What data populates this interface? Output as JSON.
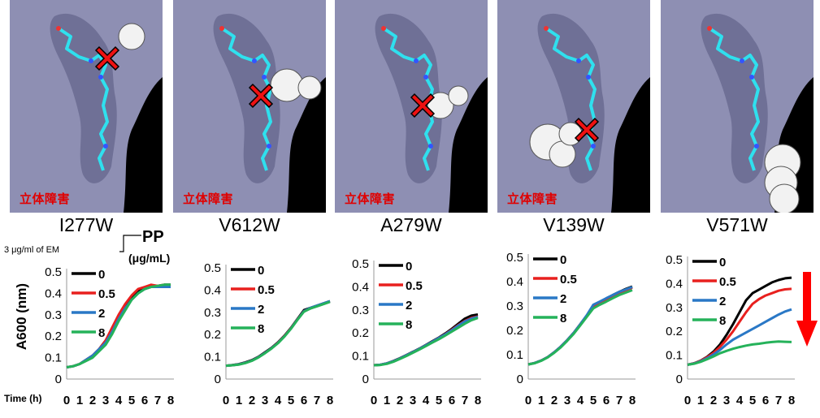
{
  "hazard_label": "立体障害",
  "panels": [
    {
      "mutation": "I277W",
      "hazard": true
    },
    {
      "mutation": "V612W",
      "hazard": true
    },
    {
      "mutation": "A279W",
      "hazard": true
    },
    {
      "mutation": "V139W",
      "hazard": true
    },
    {
      "mutation": "V571W",
      "hazard": false
    }
  ],
  "em_note": "3 μg/ml of EM",
  "pp_label": "PP",
  "pp_unit": "(μg/mL)",
  "ylabel": "A600 (nm)",
  "xlabel": "Time (h)",
  "colors": {
    "0": "#000000",
    "0.5": "#e8201e",
    "2": "#2a78c6",
    "8": "#25b25a",
    "arrow": "#ff0000"
  },
  "chart_data": [
    {
      "type": "line",
      "title": "I277W",
      "x": [
        0,
        0.5,
        1,
        1.5,
        2,
        2.5,
        3,
        3.5,
        4,
        4.5,
        5,
        5.5,
        6,
        6.5,
        7,
        7.5,
        8
      ],
      "ylim": [
        0,
        0.5
      ],
      "xlim": [
        0,
        8
      ],
      "series": [
        {
          "name": "0",
          "values": [
            0.055,
            0.06,
            0.07,
            0.09,
            0.11,
            0.14,
            0.18,
            0.23,
            0.29,
            0.34,
            0.38,
            0.41,
            0.42,
            0.43,
            0.435,
            0.44,
            0.44
          ]
        },
        {
          "name": "0.5",
          "values": [
            0.055,
            0.06,
            0.07,
            0.09,
            0.11,
            0.14,
            0.18,
            0.24,
            0.3,
            0.35,
            0.39,
            0.42,
            0.43,
            0.44,
            0.435,
            0.44,
            0.435
          ]
        },
        {
          "name": "2",
          "values": [
            0.055,
            0.06,
            0.07,
            0.09,
            0.11,
            0.14,
            0.17,
            0.22,
            0.28,
            0.33,
            0.37,
            0.4,
            0.42,
            0.43,
            0.43,
            0.43,
            0.43
          ]
        },
        {
          "name": "8",
          "values": [
            0.055,
            0.06,
            0.07,
            0.085,
            0.1,
            0.13,
            0.16,
            0.21,
            0.27,
            0.32,
            0.37,
            0.4,
            0.42,
            0.43,
            0.435,
            0.44,
            0.44
          ]
        }
      ]
    },
    {
      "type": "line",
      "title": "V612W",
      "x": [
        0,
        0.5,
        1,
        1.5,
        2,
        2.5,
        3,
        3.5,
        4,
        4.5,
        5,
        5.5,
        6,
        6.5,
        7,
        7.5,
        8
      ],
      "ylim": [
        0,
        0.5
      ],
      "xlim": [
        0,
        8
      ],
      "series": [
        {
          "name": "0",
          "values": [
            0.06,
            0.063,
            0.067,
            0.075,
            0.085,
            0.1,
            0.12,
            0.14,
            0.165,
            0.195,
            0.23,
            0.27,
            0.31,
            0.32,
            0.33,
            0.34,
            0.35
          ]
        },
        {
          "name": "0.5",
          "values": [
            0.06,
            0.062,
            0.066,
            0.073,
            0.083,
            0.098,
            0.117,
            0.138,
            0.163,
            0.193,
            0.228,
            0.268,
            0.305,
            0.318,
            0.328,
            0.338,
            0.348
          ]
        },
        {
          "name": "2",
          "values": [
            0.06,
            0.062,
            0.066,
            0.073,
            0.083,
            0.098,
            0.117,
            0.138,
            0.162,
            0.192,
            0.227,
            0.267,
            0.305,
            0.32,
            0.33,
            0.34,
            0.35
          ]
        },
        {
          "name": "8",
          "values": [
            0.06,
            0.062,
            0.065,
            0.072,
            0.082,
            0.097,
            0.116,
            0.137,
            0.161,
            0.191,
            0.226,
            0.266,
            0.303,
            0.317,
            0.327,
            0.337,
            0.347
          ]
        }
      ]
    },
    {
      "type": "line",
      "title": "A279W",
      "x": [
        0,
        0.5,
        1,
        1.5,
        2,
        2.5,
        3,
        3.5,
        4,
        4.5,
        5,
        5.5,
        6,
        6.5,
        7,
        7.5,
        8
      ],
      "ylim": [
        0,
        0.5
      ],
      "xlim": [
        0,
        8
      ],
      "series": [
        {
          "name": "0",
          "values": [
            0.06,
            0.062,
            0.068,
            0.078,
            0.09,
            0.104,
            0.118,
            0.132,
            0.148,
            0.164,
            0.18,
            0.198,
            0.218,
            0.24,
            0.262,
            0.275,
            0.28
          ]
        },
        {
          "name": "0.5",
          "values": [
            0.06,
            0.062,
            0.068,
            0.077,
            0.089,
            0.103,
            0.117,
            0.131,
            0.146,
            0.162,
            0.178,
            0.195,
            0.214,
            0.234,
            0.252,
            0.265,
            0.272
          ]
        },
        {
          "name": "2",
          "values": [
            0.06,
            0.062,
            0.068,
            0.077,
            0.089,
            0.103,
            0.117,
            0.131,
            0.146,
            0.162,
            0.178,
            0.194,
            0.212,
            0.232,
            0.25,
            0.262,
            0.27
          ]
        },
        {
          "name": "8",
          "values": [
            0.06,
            0.061,
            0.066,
            0.075,
            0.087,
            0.1,
            0.114,
            0.128,
            0.143,
            0.158,
            0.173,
            0.189,
            0.206,
            0.223,
            0.24,
            0.255,
            0.265
          ]
        }
      ]
    },
    {
      "type": "line",
      "title": "V139W",
      "x": [
        0,
        0.5,
        1,
        1.5,
        2,
        2.5,
        3,
        3.5,
        4,
        4.5,
        5,
        5.5,
        6,
        6.5,
        7,
        7.5,
        8
      ],
      "ylim": [
        0,
        0.5
      ],
      "xlim": [
        0,
        8
      ],
      "series": [
        {
          "name": "0",
          "values": [
            0.06,
            0.066,
            0.076,
            0.09,
            0.11,
            0.133,
            0.16,
            0.19,
            0.225,
            0.26,
            0.3,
            0.315,
            0.33,
            0.345,
            0.358,
            0.37,
            0.38
          ]
        },
        {
          "name": "0.5",
          "values": [
            0.06,
            0.066,
            0.076,
            0.09,
            0.11,
            0.133,
            0.16,
            0.19,
            0.225,
            0.26,
            0.298,
            0.312,
            0.327,
            0.341,
            0.354,
            0.365,
            0.375
          ]
        },
        {
          "name": "2",
          "values": [
            0.06,
            0.066,
            0.076,
            0.09,
            0.11,
            0.133,
            0.16,
            0.19,
            0.225,
            0.262,
            0.305,
            0.318,
            0.332,
            0.345,
            0.358,
            0.368,
            0.378
          ]
        },
        {
          "name": "8",
          "values": [
            0.06,
            0.065,
            0.075,
            0.089,
            0.108,
            0.13,
            0.157,
            0.186,
            0.22,
            0.255,
            0.29,
            0.305,
            0.318,
            0.332,
            0.345,
            0.355,
            0.365
          ]
        }
      ]
    },
    {
      "type": "line",
      "title": "V571W",
      "x": [
        0,
        0.5,
        1,
        1.5,
        2,
        2.5,
        3,
        3.5,
        4,
        4.5,
        5,
        5.5,
        6,
        6.5,
        7,
        7.5,
        8
      ],
      "ylim": [
        0,
        0.5
      ],
      "xlim": [
        0,
        8
      ],
      "series": [
        {
          "name": "0",
          "values": [
            0.06,
            0.066,
            0.077,
            0.093,
            0.115,
            0.145,
            0.185,
            0.23,
            0.28,
            0.33,
            0.36,
            0.375,
            0.39,
            0.405,
            0.415,
            0.422,
            0.425
          ]
        },
        {
          "name": "0.5",
          "values": [
            0.06,
            0.066,
            0.076,
            0.091,
            0.11,
            0.135,
            0.165,
            0.2,
            0.24,
            0.28,
            0.315,
            0.335,
            0.35,
            0.36,
            0.37,
            0.376,
            0.378
          ]
        },
        {
          "name": "2",
          "values": [
            0.06,
            0.065,
            0.074,
            0.087,
            0.103,
            0.122,
            0.145,
            0.165,
            0.18,
            0.195,
            0.21,
            0.225,
            0.24,
            0.255,
            0.27,
            0.283,
            0.292
          ]
        },
        {
          "name": "8",
          "values": [
            0.06,
            0.064,
            0.072,
            0.083,
            0.095,
            0.108,
            0.118,
            0.127,
            0.134,
            0.14,
            0.145,
            0.148,
            0.152,
            0.155,
            0.157,
            0.156,
            0.155
          ]
        }
      ]
    }
  ],
  "legend_labels": [
    "0",
    "0.5",
    "2",
    "8"
  ],
  "yticks": [
    "0",
    "0.1",
    "0.2",
    "0.3",
    "0.4",
    "0.5"
  ],
  "xticks": [
    "0",
    "1",
    "2",
    "3",
    "4",
    "5",
    "6",
    "7",
    "8"
  ]
}
